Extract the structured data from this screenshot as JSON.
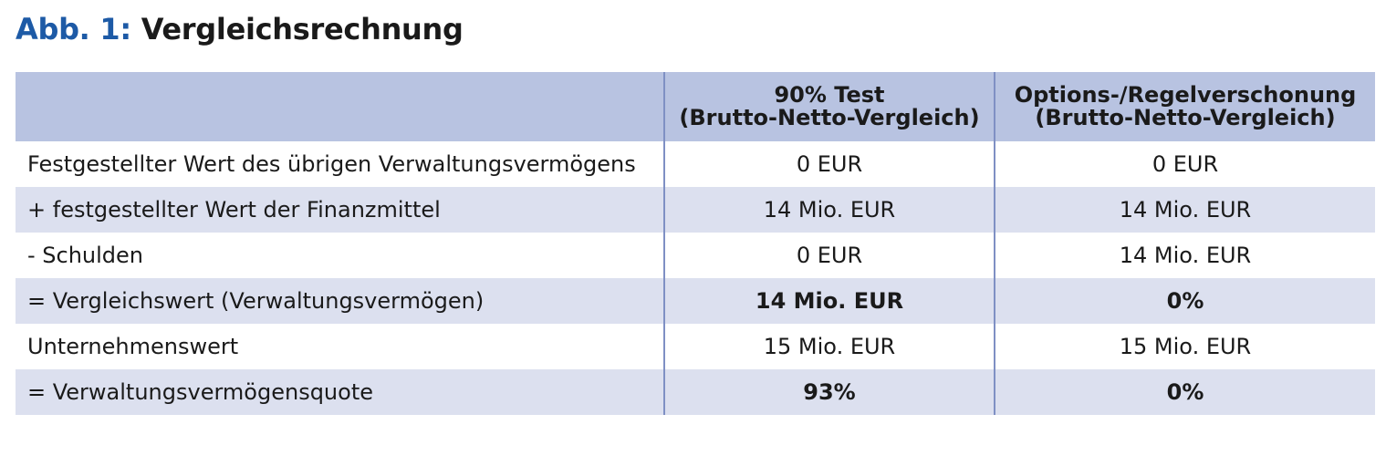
{
  "title": {
    "prefix": "Abb. 1:",
    "text": "Vergleichsrechnung"
  },
  "table": {
    "headers": [
      {
        "line1": "",
        "line2": ""
      },
      {
        "line1": "90% Test",
        "line2": "(Brutto-Netto-Vergleich)"
      },
      {
        "line1": "Options-/Regelverschonung",
        "line2": "(Brutto-Netto-Vergleich)"
      }
    ],
    "rows": [
      {
        "label": "Festgestellter Wert des übrigen Verwaltungsvermögens",
        "test": "0 EUR",
        "option": "0 EUR",
        "bold": false
      },
      {
        "label": "+ festgestellter Wert der Finanzmittel",
        "test": "14 Mio. EUR",
        "option": "14 Mio. EUR",
        "bold": false
      },
      {
        "label": "- Schulden",
        "test": "0 EUR",
        "option": "14 Mio. EUR",
        "bold": false
      },
      {
        "label": "= Vergleichswert (Verwaltungsvermögen)",
        "test": "14 Mio. EUR",
        "option": "0%",
        "bold": true
      },
      {
        "label": "Unternehmenswert",
        "test": "15 Mio. EUR",
        "option": "15 Mio. EUR",
        "bold": false
      },
      {
        "label": "= Verwaltungsvermögensquote",
        "test": "93%",
        "option": "0%",
        "bold": true
      }
    ]
  },
  "colors": {
    "title_prefix": "#1d5aa6",
    "header_bg": "#b8c3e1",
    "alt_row_bg": "#dce0ef",
    "column_separator": "#7f90c4"
  }
}
